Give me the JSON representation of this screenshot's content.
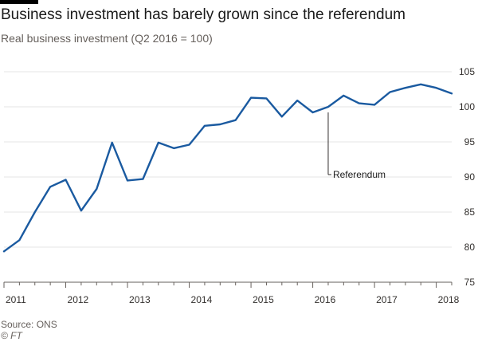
{
  "header": {
    "title": "Business investment has barely grown since the referendum",
    "subtitle": "Real business investment (Q2 2016 = 100)"
  },
  "footer": {
    "source": "Source: ONS",
    "credit": "© FT"
  },
  "colors": {
    "line": "#1a5aa0",
    "grid": "#e6e6e6",
    "axis": "#66605c",
    "text": "#33302e"
  },
  "chart_data": {
    "type": "line",
    "title": "Business investment has barely grown since the referendum",
    "subtitle": "Real business investment (Q2 2016 = 100)",
    "xlabel": "",
    "ylabel": "",
    "ylim": [
      75,
      105
    ],
    "xlim": [
      2011.0,
      2018.25
    ],
    "yticks": [
      75,
      80,
      85,
      90,
      95,
      100,
      105
    ],
    "xticks": [
      "2011",
      "2012",
      "2013",
      "2014",
      "2015",
      "2016",
      "2017",
      "2018"
    ],
    "y_axis_position": "right",
    "grid": true,
    "series": [
      {
        "name": "",
        "x": [
          "2011 Q1",
          "2011 Q2",
          "2011 Q3",
          "2011 Q4",
          "2012 Q1",
          "2012 Q2",
          "2012 Q3",
          "2012 Q4",
          "2013 Q1",
          "2013 Q2",
          "2013 Q3",
          "2013 Q4",
          "2014 Q1",
          "2014 Q2",
          "2014 Q3",
          "2014 Q4",
          "2015 Q1",
          "2015 Q2",
          "2015 Q3",
          "2015 Q4",
          "2016 Q1",
          "2016 Q2",
          "2016 Q3",
          "2016 Q4",
          "2017 Q1",
          "2017 Q2",
          "2017 Q3",
          "2017 Q4",
          "2018 Q1",
          "2018 Q2"
        ],
        "values": [
          79.4,
          81.0,
          85.0,
          88.6,
          89.6,
          85.2,
          88.3,
          94.9,
          89.5,
          89.7,
          94.9,
          94.1,
          94.6,
          97.3,
          97.5,
          98.1,
          101.3,
          101.2,
          98.6,
          100.9,
          99.2,
          100.0,
          101.6,
          100.5,
          100.3,
          102.1,
          102.7,
          103.2,
          102.7,
          101.9
        ]
      }
    ],
    "annotations": [
      {
        "text": "Referendum",
        "x": "2016 Q2",
        "y": 100.0
      }
    ]
  }
}
